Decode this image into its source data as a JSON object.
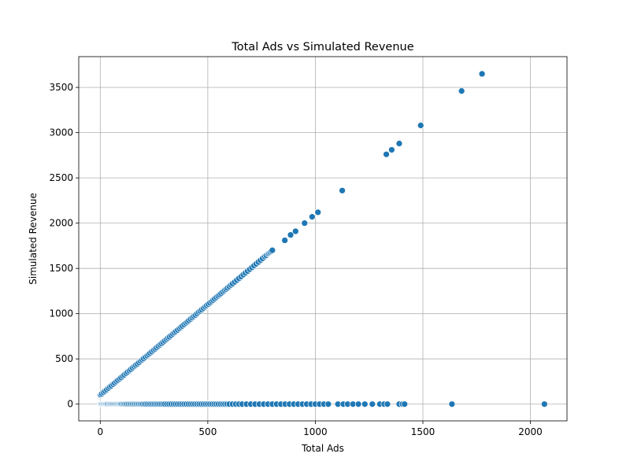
{
  "chart_data": {
    "type": "scatter",
    "title": "Total Ads vs Simulated Revenue",
    "xlabel": "Total Ads",
    "ylabel": "Simulated Revenue",
    "xlim": [
      -100,
      2170
    ],
    "ylim": [
      -185,
      3840
    ],
    "xticks": [
      0,
      500,
      1000,
      1500,
      2000
    ],
    "yticks": [
      0,
      500,
      1000,
      1500,
      2000,
      2500,
      3000,
      3500
    ],
    "grid": true,
    "marker_color": "#1f77b4",
    "marker_edge_color": "#ffffff",
    "series": [
      {
        "x": [
          0,
          2,
          5,
          8,
          12,
          15,
          18,
          22,
          25,
          28,
          32,
          35,
          40,
          44,
          48,
          52,
          56,
          60,
          64,
          68,
          72,
          76,
          80,
          84,
          88,
          92,
          96,
          100,
          105,
          110,
          115,
          120,
          126,
          132,
          138,
          144,
          150,
          156,
          162,
          168,
          174,
          180,
          186,
          192,
          198,
          205,
          212,
          220,
          228,
          236,
          244,
          252,
          260,
          268,
          276,
          284,
          292,
          300,
          310,
          320,
          330,
          340,
          350,
          360,
          370,
          380,
          390,
          400,
          410,
          420,
          430,
          440,
          450,
          460,
          470,
          480,
          490,
          500,
          510,
          520,
          530,
          540,
          550,
          560,
          570,
          580,
          590,
          600,
          615,
          630,
          645,
          660,
          680,
          700,
          720,
          740,
          760,
          780,
          800,
          820,
          840,
          860,
          880,
          900,
          920,
          940,
          960,
          980,
          1000,
          1020,
          1040,
          1060,
          1105,
          1130,
          1150,
          1175,
          1200,
          1230,
          1265,
          1300,
          1320,
          1335,
          1390,
          1405,
          1415,
          1635,
          2065,
          0,
          3,
          8,
          15,
          22,
          30,
          38,
          45,
          52,
          60,
          67,
          75,
          82,
          90,
          97,
          105,
          112,
          120,
          127,
          135,
          142,
          150,
          158,
          165,
          172,
          180,
          188,
          195,
          202,
          210,
          218,
          225,
          232,
          240,
          248,
          255,
          262,
          270,
          278,
          285,
          292,
          300,
          308,
          315,
          322,
          330,
          338,
          345,
          352,
          360,
          368,
          375,
          382,
          390,
          398,
          405,
          412,
          420,
          428,
          435,
          442,
          450,
          458,
          465,
          472,
          480,
          488,
          495,
          502,
          510,
          518,
          525,
          532,
          540,
          548,
          555,
          562,
          570,
          578,
          585,
          592,
          600,
          608,
          615,
          625,
          635,
          645,
          655,
          665,
          675,
          685,
          695,
          705,
          715,
          725,
          735,
          745,
          755,
          765,
          772,
          780,
          785,
          790,
          795,
          800,
          858,
          885,
          908,
          950,
          985,
          1012,
          1125,
          1330,
          1355,
          1390,
          1490,
          1680,
          1775
        ],
        "y": [
          0,
          0,
          0,
          0,
          0,
          0,
          0,
          0,
          0,
          0,
          0,
          0,
          0,
          0,
          0,
          0,
          0,
          0,
          0,
          0,
          0,
          0,
          0,
          0,
          0,
          0,
          0,
          0,
          0,
          0,
          0,
          0,
          0,
          0,
          0,
          0,
          0,
          0,
          0,
          0,
          0,
          0,
          0,
          0,
          0,
          0,
          0,
          0,
          0,
          0,
          0,
          0,
          0,
          0,
          0,
          0,
          0,
          0,
          0,
          0,
          0,
          0,
          0,
          0,
          0,
          0,
          0,
          0,
          0,
          0,
          0,
          0,
          0,
          0,
          0,
          0,
          0,
          0,
          0,
          0,
          0,
          0,
          0,
          0,
          0,
          0,
          0,
          0,
          0,
          0,
          0,
          0,
          0,
          0,
          0,
          0,
          0,
          0,
          0,
          0,
          0,
          0,
          0,
          0,
          0,
          0,
          0,
          0,
          0,
          0,
          0,
          0,
          0,
          0,
          0,
          0,
          0,
          0,
          0,
          0,
          0,
          0,
          0,
          0,
          0,
          0,
          0,
          100,
          106,
          116,
          130,
          144,
          160,
          176,
          190,
          204,
          220,
          234,
          250,
          264,
          280,
          294,
          310,
          324,
          340,
          354,
          370,
          384,
          400,
          416,
          430,
          444,
          460,
          476,
          490,
          504,
          520,
          536,
          550,
          564,
          580,
          596,
          610,
          624,
          640,
          656,
          670,
          684,
          700,
          716,
          730,
          744,
          760,
          776,
          790,
          804,
          820,
          836,
          850,
          864,
          880,
          896,
          910,
          924,
          940,
          956,
          970,
          984,
          1000,
          1016,
          1030,
          1044,
          1060,
          1076,
          1090,
          1104,
          1120,
          1136,
          1150,
          1164,
          1180,
          1196,
          1210,
          1224,
          1240,
          1256,
          1270,
          1284,
          1300,
          1316,
          1330,
          1350,
          1370,
          1390,
          1410,
          1430,
          1450,
          1470,
          1490,
          1510,
          1530,
          1550,
          1570,
          1590,
          1610,
          1630,
          1644,
          1660,
          1670,
          1680,
          1690,
          1700,
          1810,
          1870,
          1910,
          2000,
          2070,
          2120,
          2360,
          2760,
          2810,
          2880,
          3080,
          3460,
          3650
        ]
      }
    ]
  }
}
